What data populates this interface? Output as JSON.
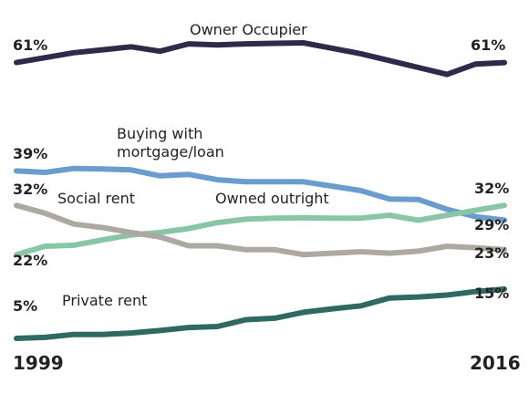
{
  "chart_data": {
    "type": "line",
    "title": "",
    "x": [
      1999,
      2000,
      2001,
      2002,
      2003,
      2004,
      2005,
      2006,
      2007,
      2008,
      2009,
      2010,
      2011,
      2012,
      2013,
      2014,
      2015,
      2016
    ],
    "x_start_label": "1999",
    "x_end_label": "2016",
    "ylim": [
      0,
      70
    ],
    "grid": false,
    "legend": "inline labels",
    "series": [
      {
        "name": "Owner Occupier",
        "color": "#2e2a4a",
        "start_label": "61%",
        "end_label": "61%",
        "values": [
          61,
          62,
          63,
          63.6,
          64.2,
          63.3,
          64.8,
          64.6,
          64.8,
          64.9,
          65,
          63.9,
          62.8,
          61.4,
          60,
          58.6,
          60.7,
          61
        ]
      },
      {
        "name": "Buying with mortgage/loan",
        "name_lines": [
          "Buying with",
          "mortgage/loan"
        ],
        "color": "#6a9ccd",
        "start_label": "39%",
        "end_label": "29%",
        "values": [
          39,
          38.7,
          39.5,
          39.4,
          39.2,
          38,
          38.3,
          37.2,
          36.8,
          36.8,
          36.8,
          35.9,
          35,
          33.3,
          33.2,
          31.2,
          29.7,
          29
        ]
      },
      {
        "name": "Owned outright",
        "color": "#88c6a5",
        "start_label": "22%",
        "end_label": "32%",
        "values": [
          22,
          23.7,
          23.9,
          25,
          26,
          26.5,
          27.3,
          28.5,
          29.2,
          29.4,
          29.5,
          29.4,
          29.4,
          30,
          29,
          30,
          31,
          32
        ]
      },
      {
        "name": "Social rent",
        "color": "#aea8a3",
        "start_label": "32%",
        "end_label": "23%",
        "values": [
          32,
          30.4,
          28.2,
          27.5,
          26.5,
          25.6,
          23.8,
          23.8,
          23,
          23,
          22,
          22.3,
          22.6,
          22.3,
          22.7,
          23.7,
          23.4,
          23
        ]
      },
      {
        "name": "Private rent",
        "color": "#2f6a62",
        "start_label": "5%",
        "end_label": "15%",
        "values": [
          5,
          5.2,
          5.8,
          5.8,
          6.1,
          6.6,
          7.2,
          7.4,
          8.8,
          9.1,
          10.3,
          11,
          11.6,
          13.2,
          13.4,
          13.8,
          14.5,
          15
        ]
      }
    ]
  }
}
